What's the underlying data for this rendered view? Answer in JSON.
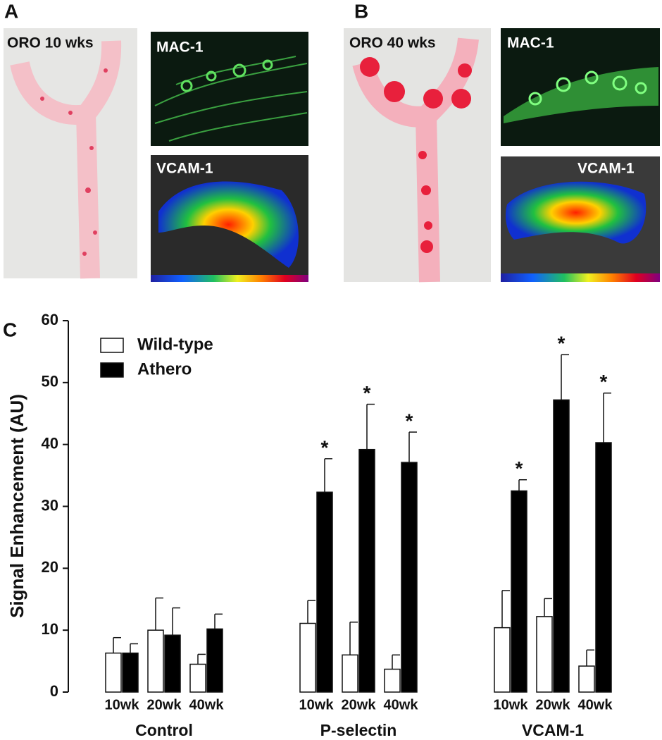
{
  "panels": [
    {
      "label": "A",
      "images": [
        "ORO 10 wks",
        "MAC-1",
        "VCAM-1"
      ]
    },
    {
      "label": "B",
      "images": [
        "ORO 40 wks",
        "MAC-1",
        "VCAM-1"
      ]
    }
  ],
  "chart_data": {
    "label": "C",
    "type": "bar",
    "ylabel": "Signal Enhancement (AU)",
    "groups": [
      "Control",
      "P-selectin",
      "VCAM-1"
    ],
    "categories": [
      "10wk",
      "20wk",
      "40wk",
      "10wk",
      "20wk",
      "40wk",
      "10wk",
      "20wk",
      "40wk"
    ],
    "series": [
      {
        "name": "Wild-type",
        "color": "#ffffff",
        "values": [
          6.3,
          10.0,
          4.5,
          11.1,
          6.0,
          3.7,
          10.4,
          12.2,
          4.2
        ],
        "errors": [
          2.5,
          5.2,
          1.6,
          3.7,
          5.3,
          2.3,
          6.0,
          2.9,
          2.6
        ]
      },
      {
        "name": "Athero",
        "color": "#000000",
        "values": [
          6.3,
          9.2,
          10.2,
          32.3,
          39.2,
          37.1,
          32.5,
          47.2,
          40.3
        ],
        "errors": [
          1.5,
          4.4,
          2.4,
          5.4,
          7.3,
          4.9,
          1.8,
          7.3,
          8.0
        ],
        "significance": [
          null,
          null,
          null,
          "*",
          "*",
          "*",
          "*",
          "*",
          "*"
        ]
      }
    ],
    "ylim": [
      0,
      60
    ],
    "yticks": [
      0,
      10,
      20,
      30,
      40,
      50,
      60
    ],
    "legend": "upper left"
  }
}
